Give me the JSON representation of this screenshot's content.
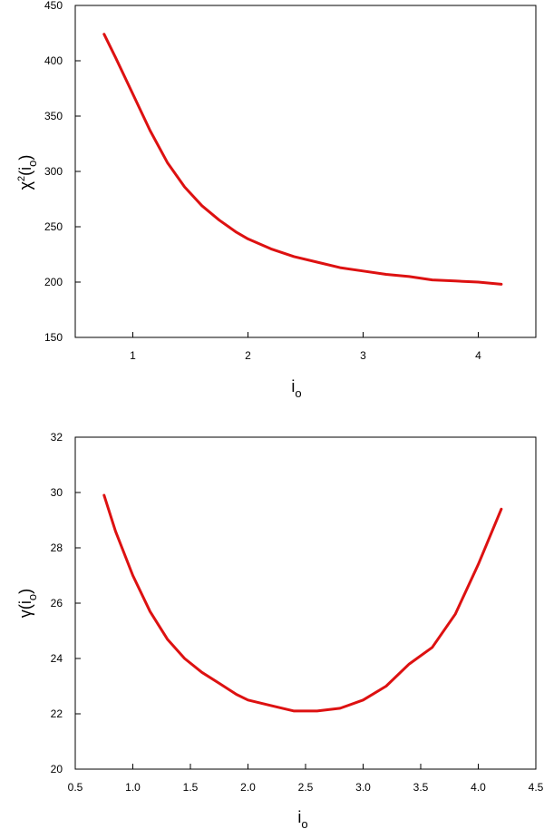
{
  "chart_data": [
    {
      "type": "line",
      "title": "",
      "xlabel": "i",
      "xlabel_sub": "o",
      "ylabel_base": "χ",
      "ylabel_sup": "2",
      "ylabel_open": "(i",
      "ylabel_sub": "o",
      "ylabel_close": ")",
      "xlim": [
        0.5,
        4.5
      ],
      "ylim": [
        150,
        450
      ],
      "xticks": [
        1,
        2,
        3,
        4
      ],
      "xtick_labels": [
        "1",
        "2",
        "3",
        "4"
      ],
      "yticks": [
        150,
        200,
        250,
        300,
        350,
        400,
        450
      ],
      "ytick_labels": [
        "150",
        "200",
        "250",
        "300",
        "350",
        "400",
        "450"
      ],
      "color": "#dd1111",
      "series": [
        {
          "x": [
            0.75,
            0.85,
            1.0,
            1.15,
            1.3,
            1.45,
            1.6,
            1.75,
            1.9,
            2.0,
            2.2,
            2.4,
            2.6,
            2.8,
            3.0,
            3.2,
            3.4,
            3.6,
            3.8,
            4.0,
            4.2
          ],
          "y": [
            424,
            403,
            370,
            337,
            308,
            286,
            269,
            256,
            245,
            239,
            230,
            223,
            218,
            213,
            210,
            207,
            205,
            202,
            201,
            200,
            198
          ]
        }
      ]
    },
    {
      "type": "line",
      "title": "",
      "xlabel": "i",
      "xlabel_sub": "o",
      "ylabel_base": "γ",
      "ylabel_open": "(i",
      "ylabel_sub": "o",
      "ylabel_close": ")",
      "xlim": [
        0.5,
        4.5
      ],
      "ylim": [
        20,
        32
      ],
      "xticks": [
        0.5,
        1.0,
        1.5,
        2.0,
        2.5,
        3.0,
        3.5,
        4.0,
        4.5
      ],
      "xtick_labels": [
        "0.5",
        "1.0",
        "1.5",
        "2.0",
        "2.5",
        "3.0",
        "3.5",
        "4.0",
        "4.5"
      ],
      "yticks": [
        20,
        22,
        24,
        26,
        28,
        30,
        32
      ],
      "ytick_labels": [
        "20",
        "22",
        "24",
        "26",
        "28",
        "30",
        "32"
      ],
      "color": "#dd1111",
      "series": [
        {
          "x": [
            0.75,
            0.85,
            1.0,
            1.15,
            1.3,
            1.45,
            1.6,
            1.75,
            1.9,
            2.0,
            2.2,
            2.4,
            2.6,
            2.8,
            3.0,
            3.2,
            3.4,
            3.6,
            3.8,
            4.0,
            4.2
          ],
          "y": [
            29.9,
            28.6,
            27.0,
            25.7,
            24.7,
            24.0,
            23.5,
            23.1,
            22.7,
            22.5,
            22.3,
            22.1,
            22.1,
            22.2,
            22.5,
            23.0,
            23.8,
            24.4,
            25.6,
            27.4,
            29.4
          ]
        }
      ]
    }
  ]
}
